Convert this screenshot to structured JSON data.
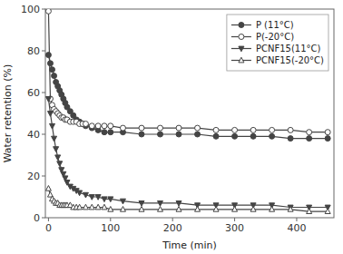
{
  "chart_data": {
    "type": "line",
    "xlabel": "Time (min)",
    "ylabel": "Water retention (%)",
    "xlim": [
      -5,
      460
    ],
    "ylim": [
      0,
      100
    ],
    "xticks": [
      0,
      100,
      200,
      300,
      400
    ],
    "yticks": [
      0,
      20,
      40,
      60,
      80,
      100
    ],
    "grid": false,
    "legend": "upper right",
    "series": [
      {
        "name": "P (11°C)",
        "color": "#444444",
        "marker": "circle",
        "x": [
          0,
          3,
          6,
          9,
          12,
          15,
          18,
          21,
          24,
          27,
          30,
          35,
          40,
          45,
          50,
          55,
          60,
          70,
          80,
          90,
          100,
          120,
          150,
          180,
          210,
          240,
          270,
          300,
          330,
          360,
          390,
          420,
          450
        ],
        "values": [
          78,
          74,
          71,
          68,
          65,
          63,
          61,
          59,
          57,
          55,
          53,
          51,
          49,
          47,
          46,
          45,
          44,
          43,
          42,
          41,
          41,
          41,
          40,
          40,
          40,
          40,
          39,
          39,
          39,
          39,
          38,
          38,
          38
        ]
      },
      {
        "name": "P(-20°C)",
        "color": "#444444",
        "marker": "open-circle",
        "x": [
          0,
          3,
          6,
          9,
          12,
          15,
          18,
          21,
          24,
          27,
          30,
          35,
          40,
          45,
          50,
          55,
          60,
          70,
          80,
          90,
          100,
          120,
          150,
          180,
          210,
          240,
          270,
          300,
          330,
          360,
          390,
          420,
          450
        ],
        "values": [
          99,
          57,
          54,
          52,
          51,
          50,
          49,
          48,
          48,
          47,
          47,
          46,
          46,
          46,
          45,
          45,
          45,
          44,
          44,
          44,
          44,
          43,
          43,
          43,
          43,
          43,
          42,
          42,
          42,
          42,
          42,
          41,
          41
        ]
      },
      {
        "name": "PCNF15(11°C)",
        "color": "#444444",
        "marker": "triangle-down",
        "x": [
          0,
          3,
          6,
          9,
          12,
          15,
          18,
          21,
          24,
          27,
          30,
          35,
          40,
          45,
          50,
          60,
          70,
          80,
          90,
          100,
          120,
          150,
          180,
          210,
          240,
          270,
          300,
          330,
          360,
          390,
          420,
          450
        ],
        "values": [
          57,
          50,
          44,
          38,
          33,
          29,
          26,
          23,
          21,
          19,
          17,
          15,
          14,
          13,
          12,
          11,
          10,
          10,
          9,
          9,
          8,
          7,
          7,
          7,
          6,
          6,
          6,
          6,
          6,
          5,
          5,
          5
        ]
      },
      {
        "name": "PCNF15(-20°C)",
        "color": "#444444",
        "marker": "open-triangle-up",
        "x": [
          0,
          3,
          6,
          9,
          12,
          15,
          18,
          21,
          24,
          27,
          30,
          35,
          40,
          45,
          50,
          60,
          70,
          80,
          90,
          100,
          120,
          150,
          180,
          210,
          240,
          270,
          300,
          330,
          360,
          390,
          420,
          450
        ],
        "values": [
          14,
          11,
          9,
          8,
          7,
          7,
          6,
          6,
          6,
          6,
          6,
          6,
          5,
          5,
          5,
          5,
          5,
          5,
          5,
          4,
          4,
          4,
          4,
          4,
          4,
          4,
          4,
          4,
          4,
          4,
          3,
          3
        ]
      }
    ]
  }
}
